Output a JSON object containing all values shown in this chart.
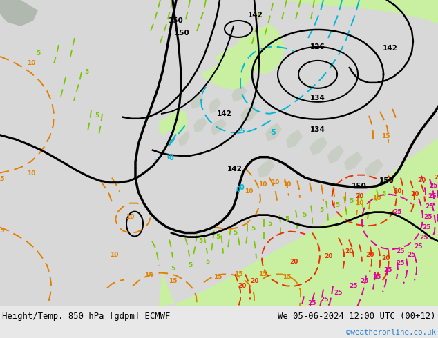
{
  "title_left": "Height/Temp. 850 hPa [gdpm] ECMWF",
  "title_right": "We 05-06-2024 12:00 UTC (00+12)",
  "copyright": "©weatheronline.co.uk",
  "figure_size": [
    6.34,
    4.9
  ],
  "dpi": 100,
  "map_bg": "#e0e0e0",
  "land_color": "#c8f0a0",
  "land_color2": "#b8e890",
  "sea_color": "#d8d8d8",
  "bottom_bg": "#e8e8e8"
}
